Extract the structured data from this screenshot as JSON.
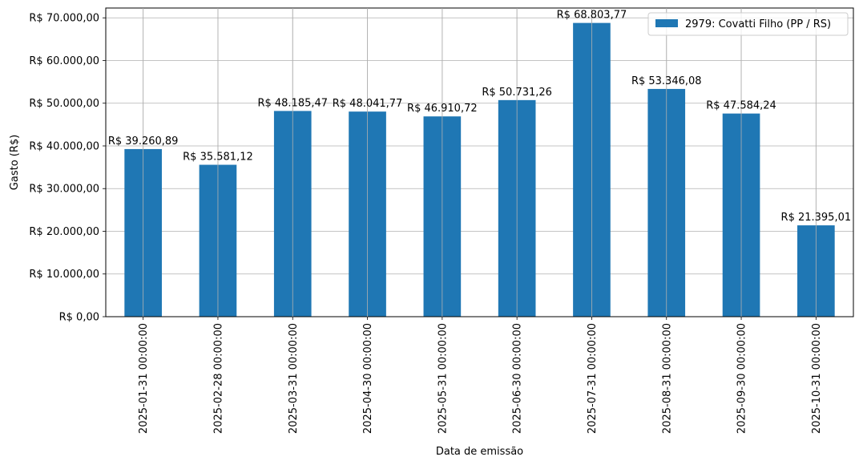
{
  "chart_data": {
    "type": "bar",
    "categories": [
      "2025-01-31 00:00:00",
      "2025-02-28 00:00:00",
      "2025-03-31 00:00:00",
      "2025-04-30 00:00:00",
      "2025-05-31 00:00:00",
      "2025-06-30 00:00:00",
      "2025-07-31 00:00:00",
      "2025-08-31 00:00:00",
      "2025-09-30 00:00:00",
      "2025-10-31 00:00:00"
    ],
    "series": [
      {
        "name": "2979: Covatti Filho (PP / RS)",
        "color": "#1f77b4",
        "values": [
          39260.89,
          35581.12,
          48185.47,
          48041.77,
          46910.72,
          50731.26,
          68803.77,
          53346.08,
          47584.24,
          21395.01
        ],
        "data_labels": [
          "R$ 39.260,89",
          "R$ 35.581,12",
          "R$ 48.185,47",
          "R$ 48.041,77",
          "R$ 46.910,72",
          "R$ 50.731,26",
          "R$ 68.803,77",
          "R$ 53.346,08",
          "R$ 47.584,24",
          "R$ 21.395,01"
        ]
      }
    ],
    "xlabel": "Data de emissão",
    "ylabel": "Gasto (R$)",
    "ylim": [
      0,
      72300
    ],
    "yticks": [
      0,
      10000,
      20000,
      30000,
      40000,
      50000,
      60000,
      70000
    ],
    "ytick_labels": [
      "R$ 0,00",
      "R$ 10.000,00",
      "R$ 20.000,00",
      "R$ 30.000,00",
      "R$ 40.000,00",
      "R$ 50.000,00",
      "R$ 60.000,00",
      "R$ 70.000,00"
    ],
    "grid": true,
    "legend_position": "top-right"
  }
}
